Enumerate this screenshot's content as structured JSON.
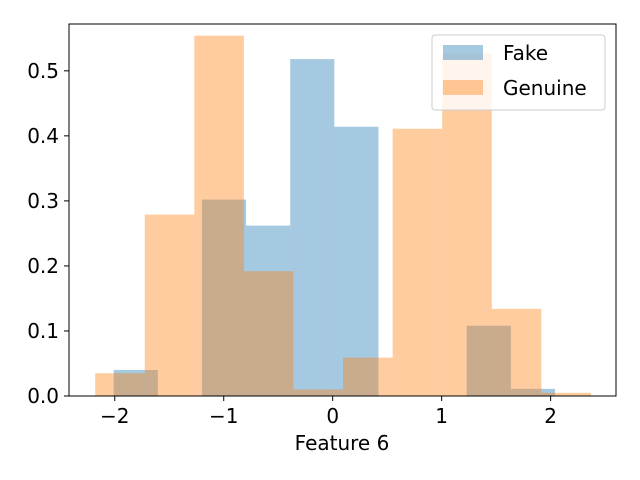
{
  "chart_data": {
    "type": "bar",
    "title": "",
    "xlabel": "Feature 6",
    "ylabel": "",
    "xlim": [
      -2.42,
      2.6
    ],
    "ylim": [
      0,
      0.572
    ],
    "xticks": [
      -2,
      -1,
      0,
      1,
      2
    ],
    "xtick_labels": [
      "−2",
      "−1",
      "0",
      "1",
      "2"
    ],
    "yticks": [
      0.0,
      0.1,
      0.2,
      0.3,
      0.4,
      0.5
    ],
    "ytick_labels": [
      "0.0",
      "0.1",
      "0.2",
      "0.3",
      "0.4",
      "0.5"
    ],
    "grid": false,
    "legend_position": "top-right",
    "series": [
      {
        "name": "Fake",
        "color": "#1f77b4",
        "opacity": 0.4,
        "bin_edges": [
          -2.01,
          -1.605,
          -1.2,
          -0.795,
          -0.39,
          0.015,
          0.42,
          0.825,
          1.23,
          1.635,
          2.04
        ],
        "values": [
          0.04,
          0.0,
          0.302,
          0.262,
          0.518,
          0.414,
          0.0,
          0.0,
          0.108,
          0.011
        ]
      },
      {
        "name": "Genuine",
        "color": "#ff7f0e",
        "opacity": 0.4,
        "bin_edges": [
          -2.18,
          -1.725,
          -1.27,
          -0.815,
          -0.36,
          0.095,
          0.55,
          1.005,
          1.46,
          1.915,
          2.37
        ],
        "values": [
          0.035,
          0.279,
          0.554,
          0.192,
          0.01,
          0.059,
          0.411,
          0.527,
          0.134,
          0.005
        ]
      }
    ]
  }
}
